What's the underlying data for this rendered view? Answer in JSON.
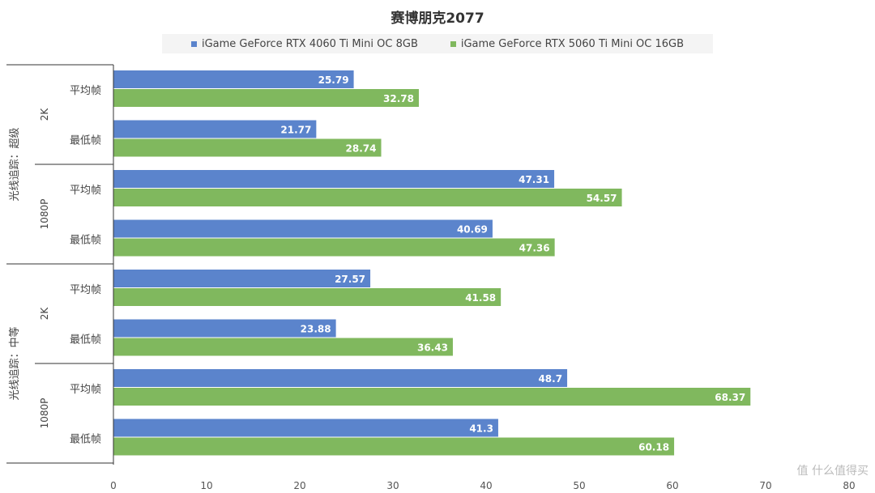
{
  "chart_data": {
    "type": "bar",
    "orientation": "horizontal",
    "title": "赛博朋克2077",
    "legend_position": "top",
    "groups": [
      {
        "label": "光线追踪：超级",
        "subgroups": [
          {
            "label": "2K",
            "categories": [
              "平均帧",
              "最低帧"
            ]
          },
          {
            "label": "1080P",
            "categories": [
              "平均帧",
              "最低帧"
            ]
          }
        ]
      },
      {
        "label": "光线追踪：中等",
        "subgroups": [
          {
            "label": "2K",
            "categories": [
              "平均帧",
              "最低帧"
            ]
          },
          {
            "label": "1080P",
            "categories": [
              "平均帧",
              "最低帧"
            ]
          }
        ]
      }
    ],
    "series": [
      {
        "name": "iGame GeForce RTX 4060 Ti Mini OC 8GB",
        "color": "#5b84cc",
        "values": [
          25.79,
          21.77,
          47.31,
          40.69,
          27.57,
          23.88,
          48.7,
          41.3
        ]
      },
      {
        "name": "iGame GeForce RTX 5060 Ti Mini OC 16GB",
        "color": "#80b85e",
        "values": [
          32.78,
          28.74,
          54.57,
          47.36,
          41.58,
          36.43,
          68.37,
          60.18
        ]
      }
    ],
    "xlim": [
      0,
      80
    ],
    "xticks": [
      0,
      10,
      20,
      30,
      40,
      50,
      60,
      70,
      80
    ],
    "grid": false
  },
  "watermark": "值 什么值得买"
}
